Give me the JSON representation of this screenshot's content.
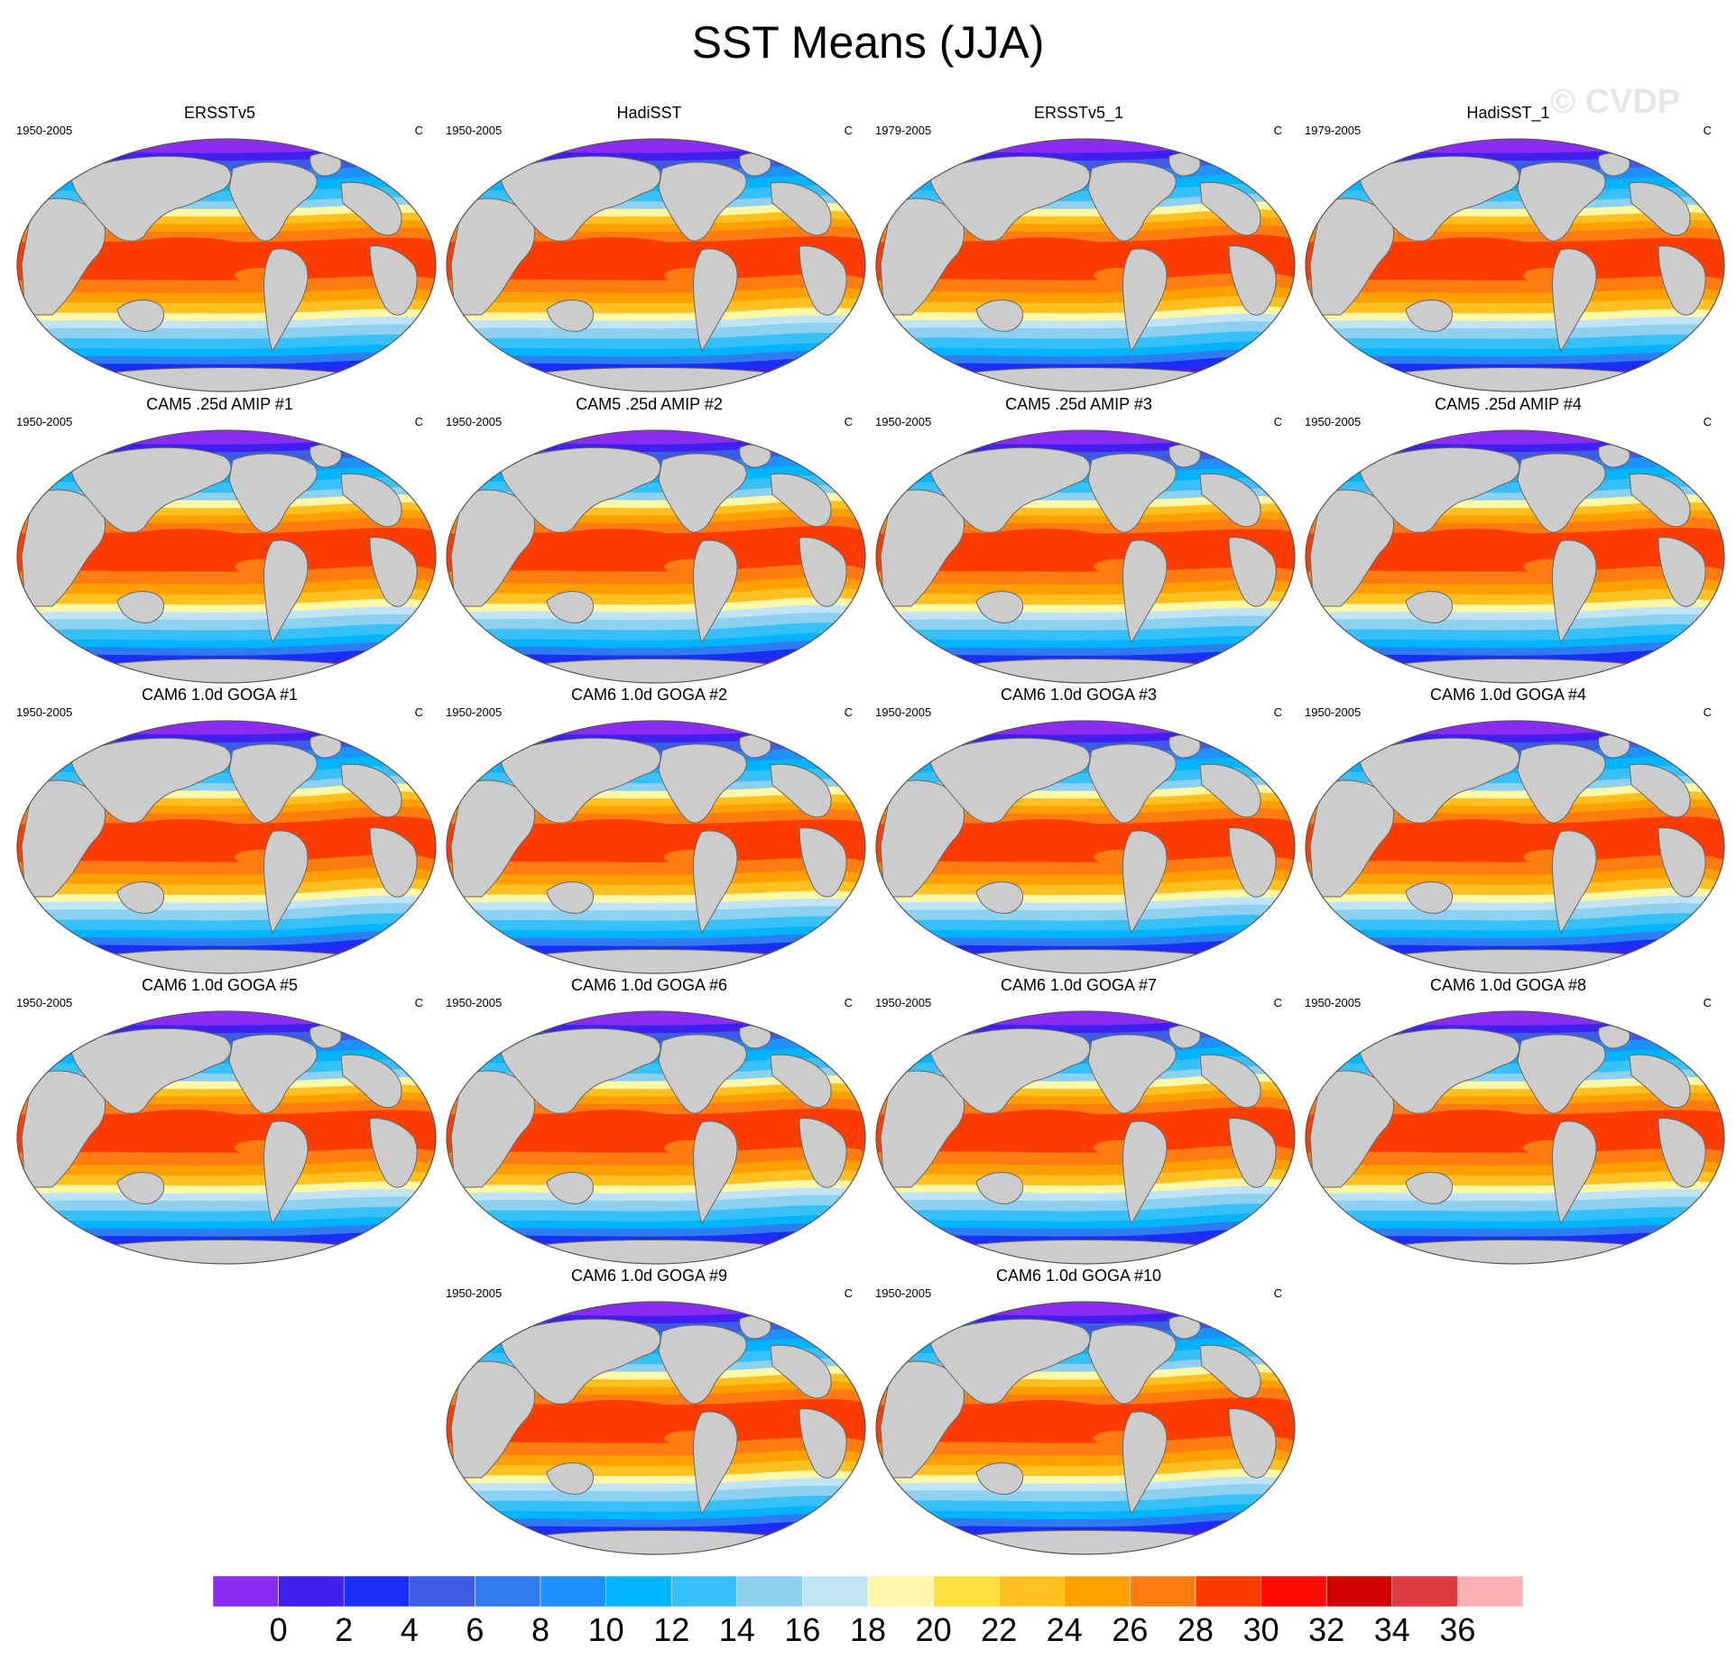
{
  "title": "SST Means (JJA)",
  "watermark": "© CVDP",
  "panels": [
    {
      "name": "ERSSTv5",
      "period": "1950-2005",
      "units": "C"
    },
    {
      "name": "HadiSST",
      "period": "1950-2005",
      "units": "C"
    },
    {
      "name": "ERSSTv5_1",
      "period": "1979-2005",
      "units": "C"
    },
    {
      "name": "HadiSST_1",
      "period": "1979-2005",
      "units": "C"
    },
    {
      "name": "CAM5 .25d AMIP #1",
      "period": "1950-2005",
      "units": "C"
    },
    {
      "name": "CAM5 .25d AMIP #2",
      "period": "1950-2005",
      "units": "C"
    },
    {
      "name": "CAM5 .25d AMIP #3",
      "period": "1950-2005",
      "units": "C"
    },
    {
      "name": "CAM5 .25d AMIP #4",
      "period": "1950-2005",
      "units": "C"
    },
    {
      "name": "CAM6 1.0d GOGA #1",
      "period": "1950-2005",
      "units": "C"
    },
    {
      "name": "CAM6 1.0d GOGA #2",
      "period": "1950-2005",
      "units": "C"
    },
    {
      "name": "CAM6 1.0d GOGA #3",
      "period": "1950-2005",
      "units": "C"
    },
    {
      "name": "CAM6 1.0d GOGA #4",
      "period": "1950-2005",
      "units": "C"
    },
    {
      "name": "CAM6 1.0d GOGA #5",
      "period": "1950-2005",
      "units": "C"
    },
    {
      "name": "CAM6 1.0d GOGA #6",
      "period": "1950-2005",
      "units": "C"
    },
    {
      "name": "CAM6 1.0d GOGA #7",
      "period": "1950-2005",
      "units": "C"
    },
    {
      "name": "CAM6 1.0d GOGA #8",
      "period": "1950-2005",
      "units": "C"
    },
    {
      "name": "CAM6 1.0d GOGA #9",
      "period": "1950-2005",
      "units": "C"
    },
    {
      "name": "CAM6 1.0d GOGA #10",
      "period": "1950-2005",
      "units": "C"
    }
  ],
  "colorbar": {
    "labels": [
      "0",
      "2",
      "4",
      "6",
      "8",
      "10",
      "12",
      "14",
      "16",
      "18",
      "20",
      "22",
      "24",
      "26",
      "28",
      "30",
      "32",
      "34",
      "36"
    ],
    "colors": [
      "#8a2cf2",
      "#4020ee",
      "#1a2ef8",
      "#3c5ce6",
      "#2f7cf0",
      "#1e90ff",
      "#00b4ff",
      "#38c0f8",
      "#8ed0f0",
      "#c0e4f6",
      "#fff8a8",
      "#ffe040",
      "#ffc020",
      "#ffa000",
      "#ff7c10",
      "#ff3c00",
      "#ff0a00",
      "#d00000",
      "#dc3c40",
      "#ffb0b4"
    ]
  },
  "map_colors": {
    "land": "#cccccc",
    "coast": "#666666",
    "outline": "#555555"
  }
}
